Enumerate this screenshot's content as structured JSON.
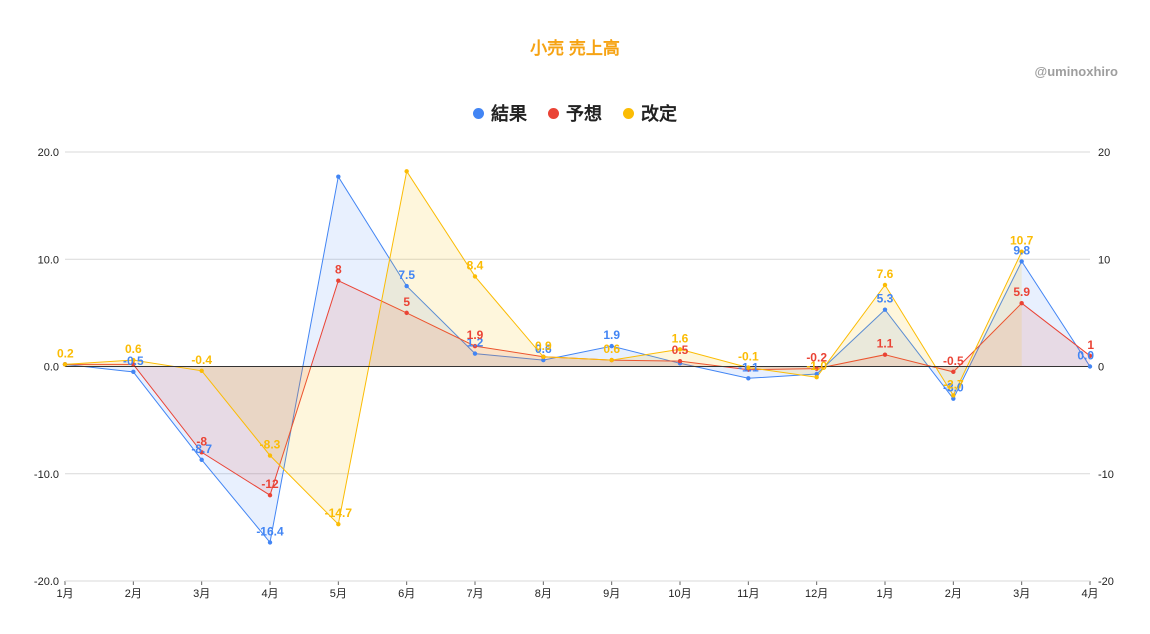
{
  "page": {
    "title": "小売 売上高",
    "credit": "@uminoxhiro"
  },
  "colors": {
    "title": "#f6a313",
    "series": [
      "#4285f4",
      "#ea4335",
      "#fbbc04"
    ],
    "grid": "#d9d9d9",
    "axis": "#333333"
  },
  "chart_data": {
    "type": "area",
    "title": "小売 売上高",
    "legend_position": "top",
    "grid": true,
    "categories": [
      "1月",
      "2月",
      "3月",
      "4月",
      "5月",
      "6月",
      "7月",
      "8月",
      "9月",
      "10月",
      "11月",
      "12月",
      "1月",
      "2月",
      "3月",
      "4月"
    ],
    "ylim": [
      -20,
      20
    ],
    "left_ticks": [
      "20.0",
      "10.0",
      "0.0",
      "-10.0",
      "-20.0"
    ],
    "right_ticks": [
      "20",
      "10",
      "0",
      "-10",
      "-20"
    ],
    "series": [
      {
        "name": "結果",
        "values": [
          0.2,
          -0.5,
          -8.7,
          -16.4,
          17.7,
          7.5,
          1.2,
          0.6,
          1.9,
          0.3,
          -1.1,
          -0.7,
          5.3,
          -3.0,
          9.8,
          0.0
        ],
        "labels": [
          "",
          "-0.5",
          "-8.7",
          "-16.4",
          "",
          "7.5",
          "1.2",
          "0.6",
          "1.9",
          "",
          "-1.1",
          "",
          "5.3",
          "-3.0",
          "9.8",
          "0.0"
        ]
      },
      {
        "name": "予想",
        "values": [
          0.2,
          0.2,
          -8,
          -12,
          8,
          5,
          1.9,
          0.9,
          0.6,
          0.5,
          -0.3,
          -0.2,
          1.1,
          -0.5,
          5.9,
          1
        ],
        "labels": [
          "",
          "",
          "-8",
          "-12",
          "8",
          "5",
          "1.9",
          "",
          "",
          "0.5",
          "",
          "-0.2",
          "1.1",
          "-0.5",
          "5.9",
          "1"
        ]
      },
      {
        "name": "改定",
        "values": [
          0.2,
          0.6,
          -0.4,
          -8.3,
          -14.7,
          18.2,
          8.4,
          0.9,
          0.6,
          1.6,
          -0.1,
          -1.0,
          7.6,
          -2.7,
          10.7,
          null
        ],
        "labels": [
          "0.2",
          "0.6",
          "-0.4",
          "-8.3",
          "-14.7",
          "",
          "8.4",
          "0.9",
          "0.6",
          "1.6",
          "-0.1",
          "-1.0",
          "7.6",
          "-2.7",
          "10.7",
          ""
        ]
      }
    ]
  }
}
